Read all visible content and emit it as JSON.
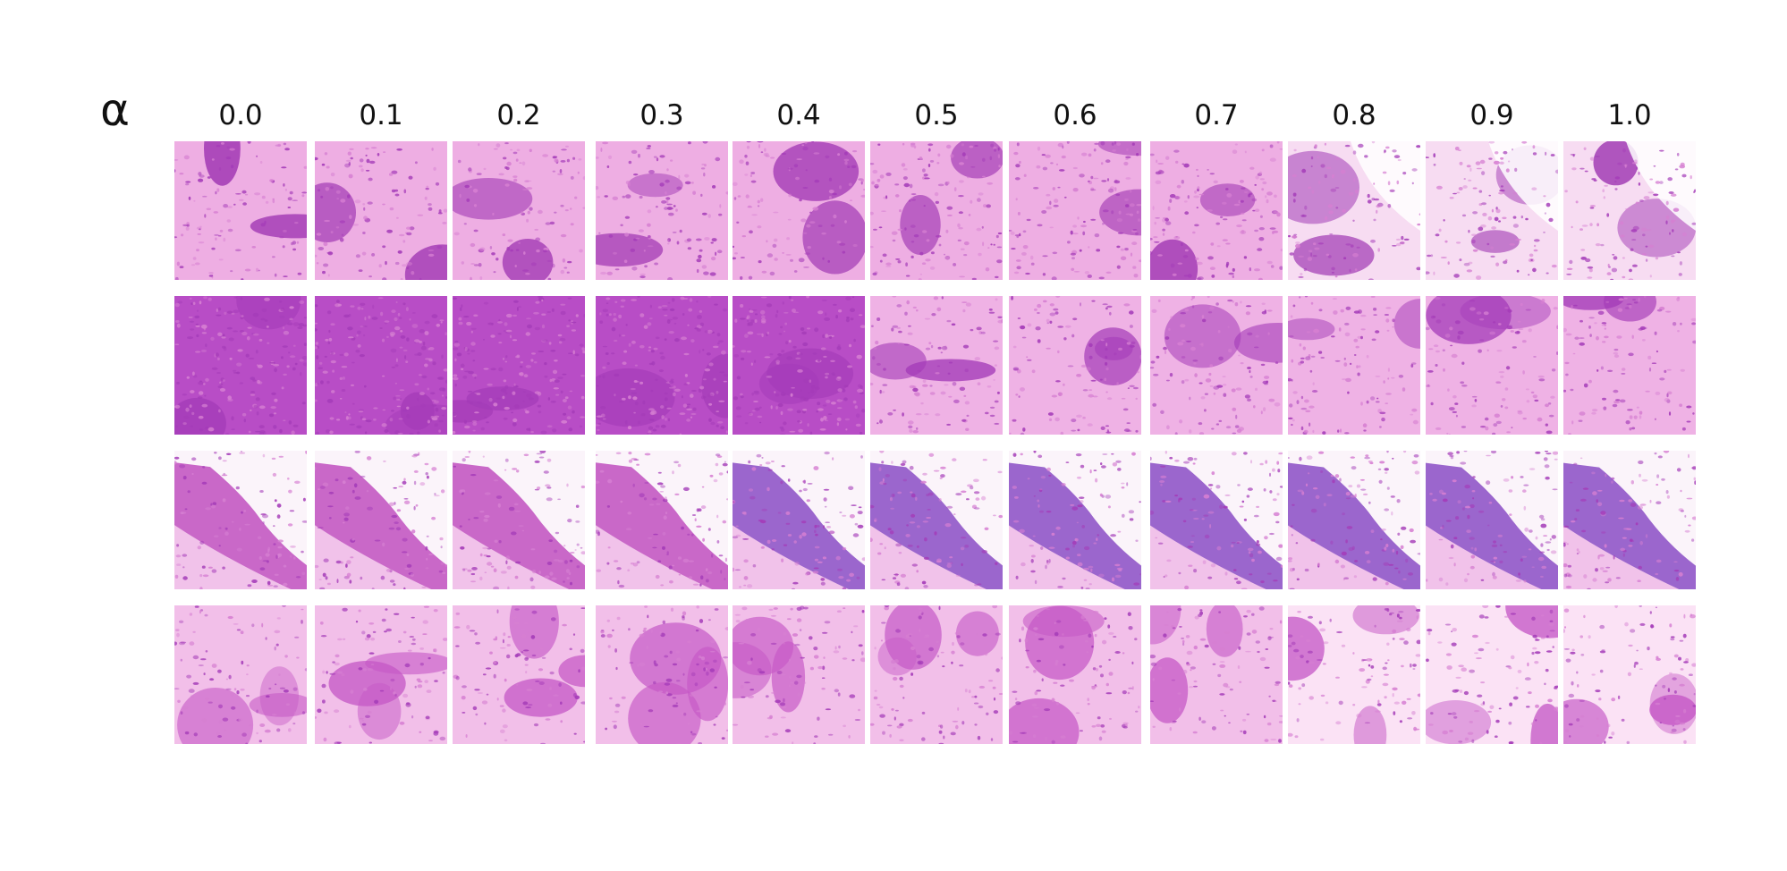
{
  "figure": {
    "row_label": "α",
    "alpha_values": [
      "0.0",
      "0.1",
      "0.2",
      "0.3",
      "0.4",
      "0.5",
      "0.6",
      "0.7",
      "0.8",
      "0.9",
      "1.0"
    ],
    "grid": {
      "rows": 4,
      "cols": 11
    },
    "content": "H&E-stained histology tissue patches",
    "palette": {
      "background": "#ffffff",
      "tissue_pink": "#ec9fdf",
      "tissue_light": "#f6d4f0",
      "nuclei_purple": "#a43bb8",
      "dense_purple": "#9b2fb0",
      "blue_purple": "#8a4cc4"
    }
  }
}
